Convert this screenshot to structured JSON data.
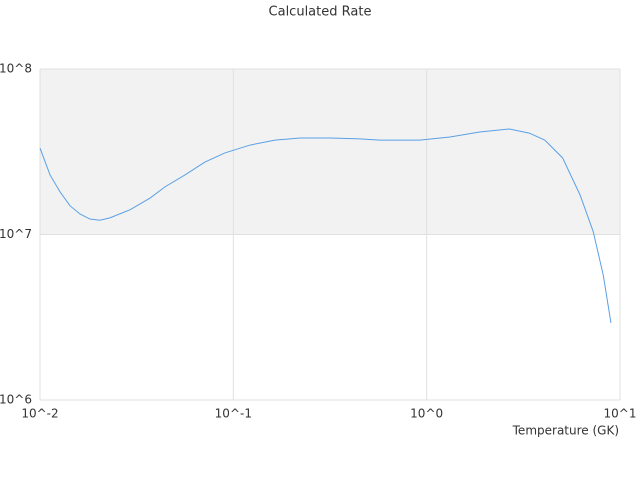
{
  "chart_data": {
    "type": "line",
    "title": "Calculated Rate",
    "x_label": "Temperature (GK)",
    "log_x": true,
    "log_y": true,
    "grid": true,
    "alternate_bands": true,
    "xlim": [
      0.01,
      10
    ],
    "ylim": [
      1000000,
      100000000
    ],
    "xticks": [
      {
        "value": 0.01,
        "label": "10^-2"
      },
      {
        "value": 0.1,
        "label": "10^-1"
      },
      {
        "value": 1,
        "label": "10^0"
      },
      {
        "value": 10,
        "label": "10^1"
      }
    ],
    "yticks": [
      {
        "value": 1000000,
        "label": "10^6"
      },
      {
        "value": 10000000,
        "label": "10^7"
      },
      {
        "value": 100000000,
        "label": "10^8"
      }
    ],
    "series": [
      {
        "color": "#5aa0e6",
        "x": [
          0.01,
          0.01127,
          0.0127,
          0.0143,
          0.0161,
          0.0181,
          0.0204,
          0.023,
          0.0292,
          0.0371,
          0.0443,
          0.0562,
          0.0713,
          0.0904,
          0.122,
          0.164,
          0.222,
          0.316,
          0.451,
          0.571,
          0.921,
          1.32,
          1.88,
          2.68,
          3.39,
          4.08,
          5.05,
          6.22,
          7.27,
          8.19,
          8.98
        ],
        "values": [
          33300000,
          22900000,
          18100000,
          14900000,
          13300000,
          12400000,
          12200000,
          12600000,
          14100000,
          16600000,
          19400000,
          22900000,
          27400000,
          31100000,
          34700000,
          37200000,
          38300000,
          38300000,
          37800000,
          37200000,
          37200000,
          38800000,
          41600000,
          43400000,
          41000000,
          37200000,
          29000000,
          17300000,
          10400000,
          5690000,
          2920000
        ]
      }
    ]
  }
}
